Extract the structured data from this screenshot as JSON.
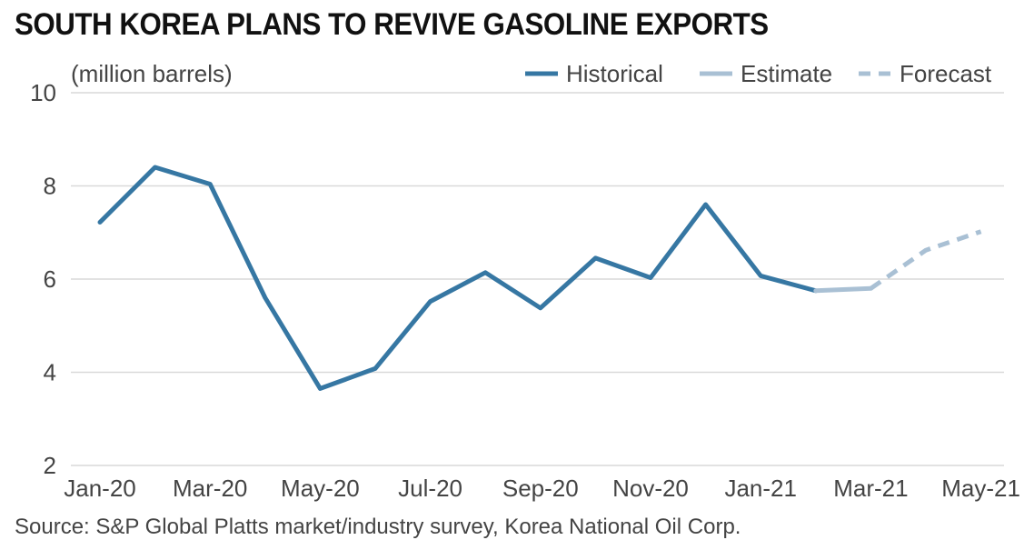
{
  "chart_data": {
    "type": "line",
    "title": "SOUTH KOREA PLANS TO REVIVE GASOLINE EXPORTS",
    "ylabel": "(million barrels)",
    "xlabel": "",
    "source": "Source: S&P Global Platts market/industry survey, Korea National Oil Corp.",
    "ylim": [
      2,
      10
    ],
    "yticks": [
      2,
      4,
      6,
      8,
      10
    ],
    "grid": true,
    "legend_position": "top-right",
    "categories": [
      "Jan-20",
      "Feb-20",
      "Mar-20",
      "Apr-20",
      "May-20",
      "Jun-20",
      "Jul-20",
      "Aug-20",
      "Sep-20",
      "Oct-20",
      "Nov-20",
      "Dec-20",
      "Jan-21",
      "Feb-21",
      "Mar-21",
      "Apr-21",
      "May-21"
    ],
    "tick_labels": [
      "Jan-20",
      "Mar-20",
      "May-20",
      "Jul-20",
      "Sep-20",
      "Nov-20",
      "Jan-21",
      "Mar-21",
      "May-21"
    ],
    "series": [
      {
        "name": "Historical",
        "color": "#3677a3",
        "style": "solid",
        "values": [
          7.22,
          8.4,
          8.04,
          5.6,
          3.65,
          4.08,
          5.52,
          6.14,
          5.38,
          6.45,
          6.03,
          7.6,
          6.07,
          5.75,
          null,
          null,
          null
        ]
      },
      {
        "name": "Estimate",
        "color": "#a9c0d4",
        "style": "solid",
        "values": [
          null,
          null,
          null,
          null,
          null,
          null,
          null,
          null,
          null,
          null,
          null,
          null,
          null,
          5.75,
          5.8,
          null,
          null
        ]
      },
      {
        "name": "Forecast",
        "color": "#a9c0d4",
        "style": "dashed",
        "values": [
          null,
          null,
          null,
          null,
          null,
          null,
          null,
          null,
          null,
          null,
          null,
          null,
          null,
          null,
          5.8,
          6.62,
          7.02
        ]
      }
    ]
  }
}
